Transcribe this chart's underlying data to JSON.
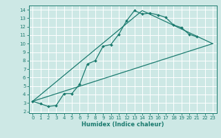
{
  "xlabel": "Humidex (Indice chaleur)",
  "bg_color": "#cde8e5",
  "grid_color": "#ffffff",
  "line_color": "#1a7a6e",
  "xlim": [
    -0.5,
    23.5
  ],
  "ylim": [
    1.8,
    14.5
  ],
  "xticks": [
    0,
    1,
    2,
    3,
    4,
    5,
    6,
    7,
    8,
    9,
    10,
    11,
    12,
    13,
    14,
    15,
    16,
    17,
    18,
    19,
    20,
    21,
    22,
    23
  ],
  "yticks": [
    2,
    3,
    4,
    5,
    6,
    7,
    8,
    9,
    10,
    11,
    12,
    13,
    14
  ],
  "line1_x": [
    0,
    1,
    2,
    3,
    4,
    5,
    6,
    7,
    8,
    9,
    10,
    11,
    12,
    13,
    14,
    15,
    16,
    17,
    18,
    19,
    20,
    21
  ],
  "line1_y": [
    3.2,
    2.9,
    2.6,
    2.7,
    4.1,
    4.1,
    5.2,
    7.6,
    8.0,
    9.7,
    9.9,
    11.1,
    12.7,
    13.9,
    13.5,
    13.6,
    13.4,
    13.1,
    12.2,
    11.9,
    11.1,
    10.8
  ],
  "line2_x": [
    0,
    23
  ],
  "line2_y": [
    3.2,
    10.0
  ],
  "line3_x": [
    0,
    14,
    23
  ],
  "line3_y": [
    3.2,
    13.9,
    10.0
  ]
}
